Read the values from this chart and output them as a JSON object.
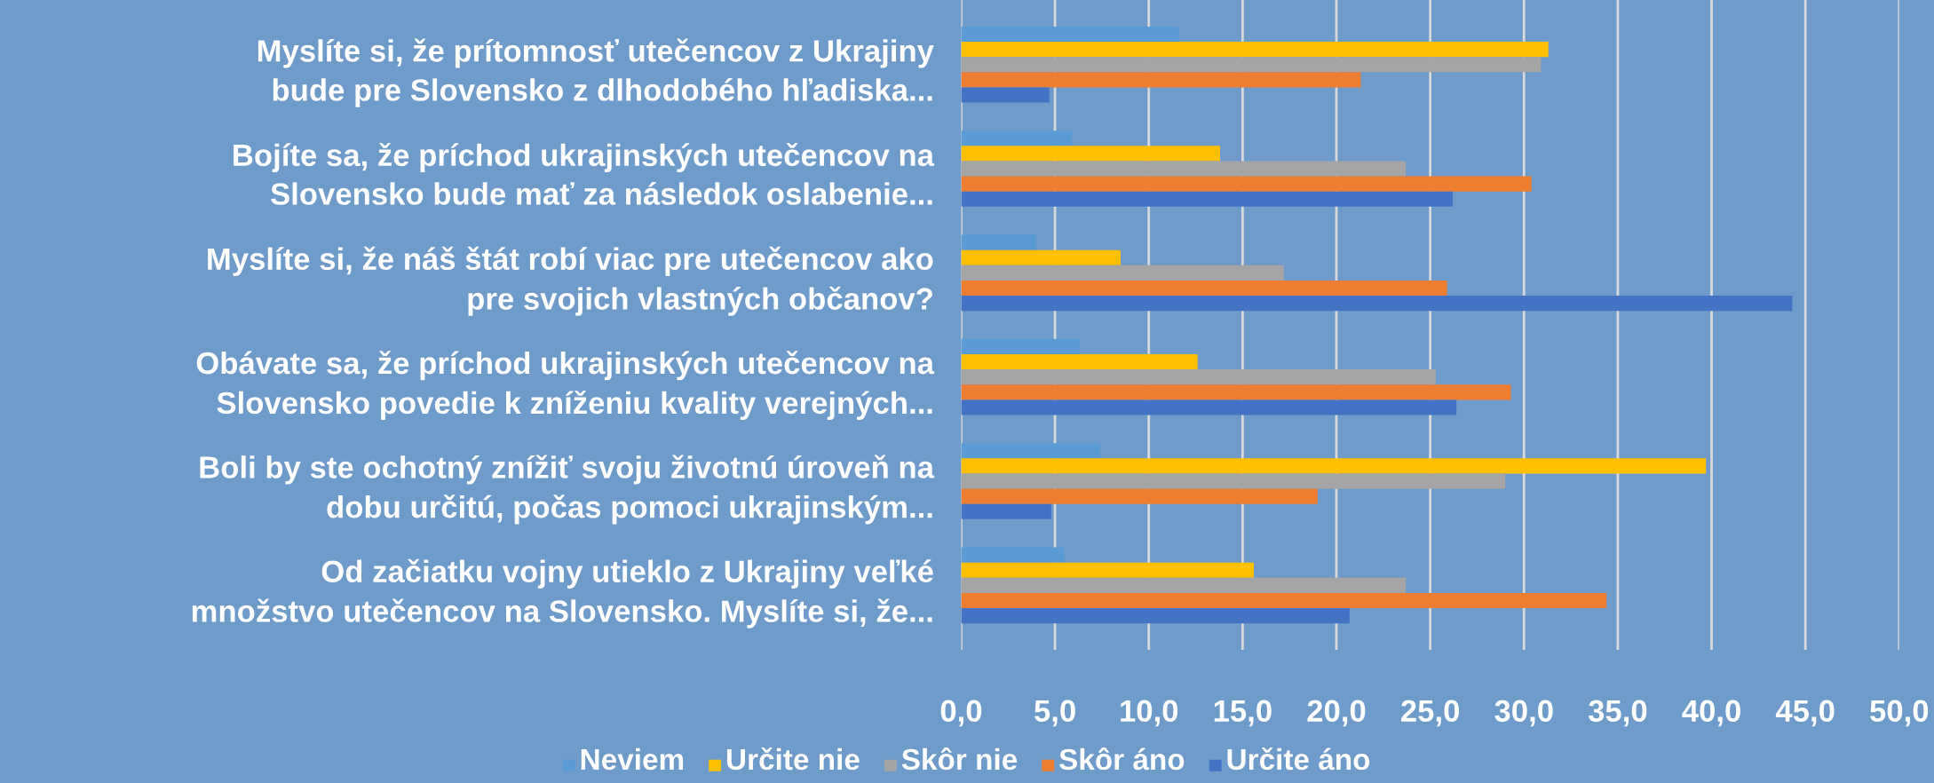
{
  "chart_data": {
    "type": "bar",
    "orientation": "horizontal",
    "categories": [
      "Myslíte si, že prítomnosť utečencov z Ukrajiny\nbude pre Slovensko z dlhodobého hľadiska...",
      "Bojíte sa, že príchod ukrajinských utečencov na\nSlovensko bude mať za následok oslabenie...",
      "Myslíte si, že náš štát robí viac pre utečencov ako\npre svojich vlastných občanov?",
      "Obávate sa, že príchod ukrajinských utečencov na\nSlovensko povedie k zníženiu kvality verejných...",
      "Boli by ste ochotný znížiť svoju životnú úroveň na\ndobu určitú, počas pomoci ukrajinským...",
      "Od začiatku vojny utieklo z Ukrajiny veľké\nmnožstvo utečencov na Slovensko. Myslíte si, že..."
    ],
    "series": [
      {
        "name": "Neviem",
        "color": "#5b9bd5",
        "values": [
          11.6,
          5.9,
          4.0,
          6.3,
          7.4,
          5.5
        ]
      },
      {
        "name": "Určite nie",
        "color": "#ffc000",
        "values": [
          31.3,
          13.8,
          8.5,
          12.6,
          39.7,
          15.6
        ]
      },
      {
        "name": "Skôr nie",
        "color": "#a5a5a5",
        "values": [
          30.9,
          23.7,
          17.2,
          25.3,
          29.0,
          23.7
        ]
      },
      {
        "name": "Skôr áno",
        "color": "#ed7d31",
        "values": [
          21.3,
          30.4,
          25.9,
          29.3,
          19.0,
          34.4
        ]
      },
      {
        "name": "Určite áno",
        "color": "#4472c4",
        "values": [
          4.7,
          26.2,
          44.3,
          26.4,
          4.8,
          20.7
        ]
      }
    ],
    "xlim": [
      0,
      50
    ],
    "xticks": [
      {
        "value": 0,
        "label": "0,0"
      },
      {
        "value": 5,
        "label": "5,0"
      },
      {
        "value": 10,
        "label": "10,0"
      },
      {
        "value": 15,
        "label": "15,0"
      },
      {
        "value": 20,
        "label": "20,0"
      },
      {
        "value": 25,
        "label": "25,0"
      },
      {
        "value": 30,
        "label": "30,0"
      },
      {
        "value": 35,
        "label": "35,0"
      },
      {
        "value": 40,
        "label": "40,0"
      },
      {
        "value": 45,
        "label": "45,0"
      },
      {
        "value": 50,
        "label": "50,0"
      }
    ],
    "grid": "x",
    "legend": "bottom"
  }
}
